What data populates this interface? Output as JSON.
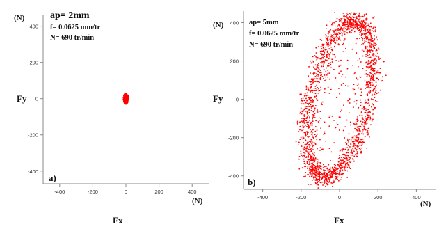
{
  "chart_data": [
    {
      "type": "scatter",
      "panel_label": "a)",
      "params": {
        "ap": "ap= 2mm",
        "f": "f= 0.0625 mm/tr",
        "N": "N= 690 tr/min"
      },
      "xlabel": "Fx",
      "ylabel": "Fy",
      "x_unit": "(N)",
      "y_unit": "(N)",
      "xlim": [
        -500,
        500
      ],
      "ylim": [
        -470,
        460
      ],
      "x_ticks": [
        -400,
        -200,
        0,
        200,
        400
      ],
      "y_ticks": [
        400,
        200,
        0,
        -200,
        -400
      ],
      "x_tick_labels": [
        "-400",
        "-200",
        "0",
        "200",
        "400"
      ],
      "y_tick_labels": [
        "400",
        "200",
        "0",
        "-200",
        "-400"
      ],
      "point_color": "#ff0000",
      "cluster": {
        "center": [
          0,
          0
        ],
        "half_width": 15,
        "half_height": 30,
        "count": 260
      }
    },
    {
      "type": "scatter",
      "panel_label": "b)",
      "params": {
        "ap": "ap= 5mm",
        "f": "f= 0.0625 mm/tr",
        "N": "N= 690 tr/min"
      },
      "xlabel": "Fx",
      "ylabel": "Fy",
      "x_unit": "(N)",
      "y_unit": "(N)",
      "xlim": [
        -500,
        500
      ],
      "ylim": [
        -470,
        460
      ],
      "x_ticks": [
        -400,
        -200,
        0,
        200,
        400
      ],
      "y_ticks": [
        400,
        200,
        0,
        -200,
        -400
      ],
      "x_tick_labels": [
        "-400",
        "-200",
        "0",
        "200",
        "400"
      ],
      "y_tick_labels": [
        "400",
        "200",
        "0",
        "-200",
        "-400"
      ],
      "point_color": "#ff0000",
      "ellipse": {
        "center": [
          0,
          0
        ],
        "rx": 150,
        "ry": 415,
        "tilt_deg": -12,
        "ring_thickness": 55,
        "count": 2000
      }
    }
  ]
}
